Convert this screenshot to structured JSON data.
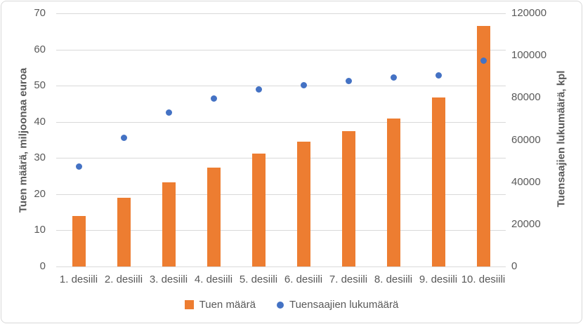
{
  "chart_data": {
    "type": "combo (bar + scatter)",
    "categories": [
      "1. desiili",
      "2. desiili",
      "3. desiili",
      "4. desiili",
      "5. desiili",
      "6. desiili",
      "7. desiili",
      "8. desiili",
      "9. desiili",
      "10. desiili"
    ],
    "series": [
      {
        "name": "Tuen määrä",
        "type": "bar",
        "axis": "left",
        "color": "#ED7D31",
        "values": [
          14,
          19,
          23.3,
          27.3,
          31.3,
          34.5,
          37.5,
          41,
          46.7,
          66.5
        ]
      },
      {
        "name": "Tuensaajien lukumäärä",
        "type": "scatter",
        "axis": "right",
        "color": "#4472C4",
        "values": [
          47500,
          61000,
          73000,
          79500,
          84000,
          86000,
          88000,
          89500,
          90500,
          97500
        ]
      }
    ],
    "left_axis": {
      "label": "Tuen määrä, miljoonaa euroa",
      "min": 0,
      "max": 70,
      "step": 10,
      "ticks": [
        "0",
        "10",
        "20",
        "30",
        "40",
        "50",
        "60",
        "70"
      ]
    },
    "right_axis": {
      "label": "Tuensaajien lukumäärä, kpl",
      "min": 0,
      "max": 120000,
      "step": 20000,
      "ticks": [
        "0",
        "20000",
        "40000",
        "60000",
        "80000",
        "100000",
        "120000"
      ]
    },
    "grid": true,
    "legend_position": "bottom",
    "colors": {
      "gridline": "#D9D9D9",
      "axis_text": "#595959",
      "border": "#D9D9D9"
    }
  }
}
